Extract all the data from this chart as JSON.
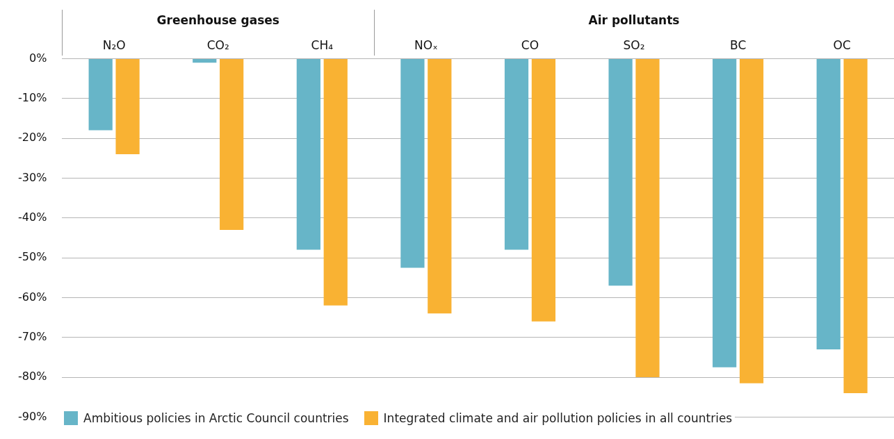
{
  "chart_data": {
    "type": "bar",
    "categories": [
      "N₂O",
      "CO₂",
      "CH₄",
      "NOₓ",
      "CO",
      "SO₂",
      "BC",
      "OC"
    ],
    "series": [
      {
        "name": "Ambitious policies in Arctic Council countries",
        "color": "#67b5c8",
        "values": [
          -18,
          -1,
          -48,
          -52.5,
          -48,
          -57,
          -77.5,
          -73
        ]
      },
      {
        "name": "Integrated climate and air pollution policies in all countries",
        "color": "#f9b233",
        "values": [
          -24,
          -43,
          -62,
          -64,
          -66,
          -80,
          -81.5,
          -84
        ]
      }
    ],
    "ylim": [
      -90,
      0
    ],
    "yticks": [
      {
        "value": 0,
        "label": "0%"
      },
      {
        "value": -10,
        "label": "-10%"
      },
      {
        "value": -20,
        "label": "-20%"
      },
      {
        "value": -30,
        "label": "-30%"
      },
      {
        "value": -40,
        "label": "-40%"
      },
      {
        "value": -50,
        "label": "-50%"
      },
      {
        "value": -60,
        "label": "-60%"
      },
      {
        "value": -70,
        "label": "-70%"
      },
      {
        "value": -80,
        "label": "-80%"
      },
      {
        "value": -90,
        "label": "-90%"
      }
    ],
    "annotations": [
      "Greenhouse gases",
      "Air pollutants"
    ],
    "grid": "y",
    "legend": "bottom left"
  }
}
